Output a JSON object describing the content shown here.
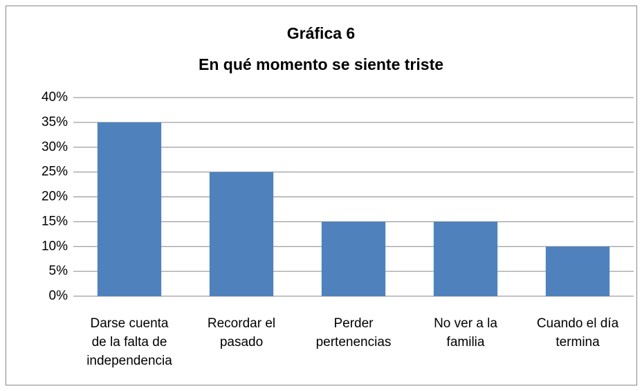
{
  "chart_data": {
    "type": "bar",
    "title": "Gráfica 6",
    "subtitle": "En qué momento se siente triste",
    "categories": [
      "Darse cuenta de la falta de independencia",
      "Recordar el pasado",
      "Perder pertenencias",
      "No ver a la familia",
      "Cuando el día termina"
    ],
    "values": [
      35,
      25,
      15,
      15,
      10
    ],
    "color": "#4f81bd",
    "ylim": [
      0,
      40
    ],
    "yticks": [
      {
        "value": 0,
        "label": "0%"
      },
      {
        "value": 5,
        "label": "5%"
      },
      {
        "value": 10,
        "label": "10%"
      },
      {
        "value": 15,
        "label": "15%"
      },
      {
        "value": 20,
        "label": "20%"
      },
      {
        "value": 25,
        "label": "25%"
      },
      {
        "value": 30,
        "label": "30%"
      },
      {
        "value": 35,
        "label": "35%"
      },
      {
        "value": 40,
        "label": "40%"
      }
    ],
    "grid": true
  }
}
